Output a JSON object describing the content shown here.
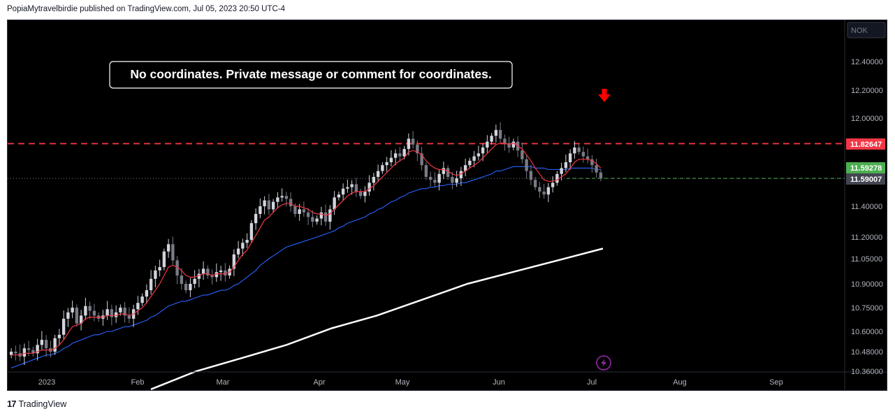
{
  "header": {
    "published_by": "PopiaMytravelbirdie published on TradingView.com, Jul 05, 2023 20:50 UTC-4"
  },
  "footer": {
    "brand": "TradingView",
    "logo_icon": "tradingview-logo-icon"
  },
  "annotation": {
    "text": "No coordinates. Private message or comment for coordinates."
  },
  "currency_badge": "NOK",
  "colors": {
    "background": "#000000",
    "bull_candle": "#d1d4dc",
    "bear_candle": "#787b86",
    "ema_short": "#f23645",
    "ema_mid": "#2962ff",
    "ema_long": "#ffffff",
    "resistance": "#f23645",
    "arrow": "#ff0000",
    "price_badge_green": "#4caf50",
    "price_badge_gray": "#434651",
    "lightning": "#9c27b0"
  },
  "chart_data": {
    "type": "candlestick",
    "title": "",
    "x_tick_labels": [
      "2023",
      "Feb",
      "Mar",
      "Apr",
      "May",
      "Jun",
      "Jul",
      "Aug",
      "Sep"
    ],
    "y_ticks": [
      "12.40000",
      "12.20000",
      "12.00000",
      "11.40000",
      "11.20000",
      "11.05000",
      "10.90000",
      "10.75000",
      "10.60000",
      "10.48000",
      "10.36000"
    ],
    "y_range": [
      10.35,
      12.52
    ],
    "price_badges": [
      {
        "label": "11.82647",
        "value": 11.82647,
        "color": "#f23645"
      },
      {
        "label": "11.59278",
        "value": 11.59278,
        "color": "#4caf50"
      },
      {
        "label": "11.59007",
        "value": 11.59007,
        "color": "#434651"
      }
    ],
    "resistance_level": 11.82647,
    "last_price": 11.59007,
    "candle_closes": [
      10.48,
      10.47,
      10.45,
      10.5,
      10.49,
      10.47,
      10.52,
      10.55,
      10.5,
      10.48,
      10.56,
      10.58,
      10.68,
      10.72,
      10.75,
      10.65,
      10.7,
      10.76,
      10.73,
      10.7,
      10.68,
      10.7,
      10.74,
      10.69,
      10.72,
      10.75,
      10.7,
      10.68,
      10.74,
      10.78,
      10.82,
      10.86,
      10.93,
      10.98,
      11.0,
      11.1,
      11.15,
      11.04,
      10.95,
      10.9,
      10.86,
      10.9,
      10.93,
      10.96,
      10.99,
      10.95,
      10.94,
      10.97,
      10.98,
      10.95,
      10.99,
      11.08,
      11.12,
      11.16,
      11.18,
      11.29,
      11.35,
      11.4,
      11.44,
      11.38,
      11.43,
      11.46,
      11.47,
      11.45,
      11.4,
      11.35,
      11.38,
      11.36,
      11.33,
      11.3,
      11.32,
      11.36,
      11.3,
      11.38,
      11.46,
      11.48,
      11.52,
      11.53,
      11.55,
      11.5,
      11.47,
      11.5,
      11.56,
      11.6,
      11.64,
      11.68,
      11.7,
      11.73,
      11.76,
      11.74,
      11.79,
      11.86,
      11.82,
      11.76,
      11.68,
      11.6,
      11.58,
      11.56,
      11.62,
      11.66,
      11.6,
      11.56,
      11.59,
      11.64,
      11.68,
      11.71,
      11.74,
      11.76,
      11.8,
      11.84,
      11.88,
      11.92,
      11.86,
      11.83,
      11.8,
      11.84,
      11.78,
      11.72,
      11.64,
      11.58,
      11.53,
      11.5,
      11.48,
      11.53,
      11.56,
      11.62,
      11.66,
      11.7,
      11.76,
      11.8,
      11.77,
      11.74,
      11.72,
      11.68,
      11.63,
      11.59
    ],
    "ema_short_values": [
      10.46,
      10.46,
      10.46,
      10.47,
      10.47,
      10.47,
      10.48,
      10.49,
      10.49,
      10.49,
      10.5,
      10.52,
      10.55,
      10.59,
      10.63,
      10.64,
      10.65,
      10.68,
      10.69,
      10.69,
      10.69,
      10.69,
      10.7,
      10.7,
      10.7,
      10.71,
      10.71,
      10.7,
      10.71,
      10.73,
      10.75,
      10.78,
      10.82,
      10.86,
      10.9,
      10.95,
      11.0,
      11.01,
      11.0,
      10.98,
      10.95,
      10.94,
      10.94,
      10.95,
      10.96,
      10.96,
      10.95,
      10.96,
      10.96,
      10.96,
      10.97,
      11.0,
      11.04,
      11.08,
      11.11,
      11.16,
      11.21,
      11.26,
      11.31,
      11.33,
      11.36,
      11.39,
      11.41,
      11.42,
      11.42,
      11.4,
      11.4,
      11.39,
      11.38,
      11.36,
      11.35,
      11.35,
      11.34,
      11.35,
      11.38,
      11.41,
      11.44,
      11.47,
      11.49,
      11.5,
      11.5,
      11.5,
      11.52,
      11.54,
      11.57,
      11.6,
      11.63,
      11.66,
      11.69,
      11.71,
      11.73,
      11.77,
      11.78,
      11.77,
      11.75,
      11.71,
      11.68,
      11.66,
      11.65,
      11.65,
      11.64,
      11.62,
      11.61,
      11.62,
      11.64,
      11.66,
      11.68,
      11.7,
      11.73,
      11.76,
      11.79,
      11.82,
      11.83,
      11.83,
      11.82,
      11.83,
      11.81,
      11.79,
      11.75,
      11.71,
      11.66,
      11.62,
      11.58,
      11.57,
      11.57,
      11.58,
      11.6,
      11.62,
      11.66,
      11.7,
      11.72,
      11.72,
      11.72,
      11.71,
      11.69,
      11.66
    ],
    "ema_mid_values": [
      10.38,
      10.39,
      10.4,
      10.41,
      10.42,
      10.43,
      10.44,
      10.45,
      10.46,
      10.46,
      10.47,
      10.48,
      10.5,
      10.51,
      10.53,
      10.54,
      10.55,
      10.56,
      10.57,
      10.58,
      10.58,
      10.59,
      10.6,
      10.6,
      10.61,
      10.62,
      10.63,
      10.63,
      10.64,
      10.65,
      10.66,
      10.67,
      10.69,
      10.7,
      10.72,
      10.74,
      10.76,
      10.77,
      10.78,
      10.79,
      10.79,
      10.8,
      10.81,
      10.82,
      10.83,
      10.83,
      10.84,
      10.85,
      10.86,
      10.86,
      10.87,
      10.89,
      10.9,
      10.92,
      10.94,
      10.96,
      10.98,
      11.01,
      11.03,
      11.05,
      11.07,
      11.09,
      11.11,
      11.13,
      11.14,
      11.15,
      11.16,
      11.17,
      11.18,
      11.19,
      11.2,
      11.21,
      11.22,
      11.23,
      11.24,
      11.26,
      11.27,
      11.29,
      11.3,
      11.31,
      11.32,
      11.33,
      11.35,
      11.36,
      11.38,
      11.39,
      11.41,
      11.43,
      11.44,
      11.46,
      11.47,
      11.49,
      11.5,
      11.51,
      11.52,
      11.52,
      11.53,
      11.53,
      11.54,
      11.54,
      11.55,
      11.55,
      11.55,
      11.56,
      11.56,
      11.57,
      11.58,
      11.59,
      11.6,
      11.61,
      11.62,
      11.64,
      11.64,
      11.65,
      11.66,
      11.67,
      11.67,
      11.67,
      11.67,
      11.67,
      11.66,
      11.66,
      11.66,
      11.65,
      11.65,
      11.65,
      11.65,
      11.65,
      11.66,
      11.66,
      11.66,
      11.66,
      11.66,
      11.66,
      11.65,
      11.65
    ],
    "ema_long_points": [
      [
        0,
        10.25
      ],
      [
        0.1,
        10.36
      ],
      [
        0.2,
        10.44
      ],
      [
        0.3,
        10.52
      ],
      [
        0.4,
        10.62
      ],
      [
        0.5,
        10.7
      ],
      [
        0.6,
        10.8
      ],
      [
        0.7,
        10.9
      ],
      [
        0.8,
        10.97
      ],
      [
        0.9,
        11.04
      ],
      [
        1.0,
        11.12
      ]
    ]
  }
}
